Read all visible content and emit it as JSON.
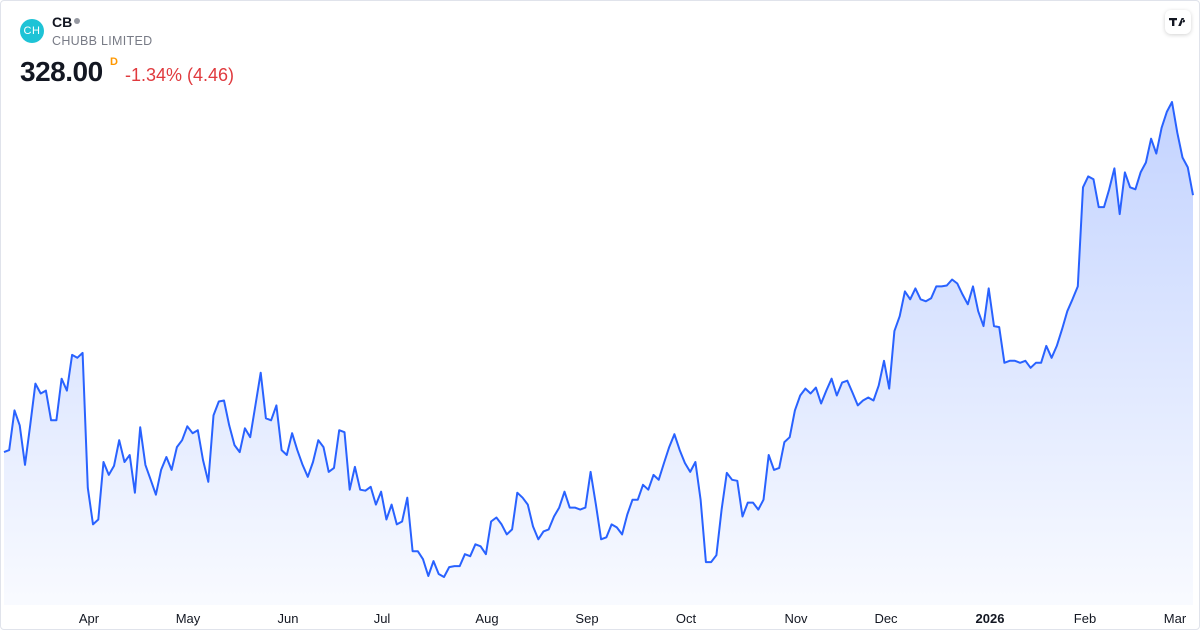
{
  "chart_data": {
    "type": "area",
    "logo_text": "CH",
    "symbol": "CB",
    "company": "CHUBB LIMITED",
    "price": "328.00",
    "session_flag": "D",
    "change": "-1.34% (4.46)",
    "color": "#2962ff",
    "xtick_labels": [
      "Apr",
      "May",
      "Jun",
      "Jul",
      "Aug",
      "Sep",
      "Oct",
      "Nov",
      "Dec",
      "2026",
      "Feb",
      "Mar"
    ],
    "values": [
      276.2,
      276.6,
      284.6,
      281.6,
      273.6,
      281.6,
      290.0,
      288.0,
      288.6,
      282.6,
      282.6,
      291.0,
      288.6,
      295.8,
      295.2,
      296.2,
      269.0,
      261.6,
      262.6,
      274.2,
      271.6,
      273.4,
      278.6,
      274.2,
      275.6,
      268.0,
      281.2,
      273.6,
      270.6,
      267.6,
      272.6,
      275.2,
      272.6,
      277.2,
      278.6,
      281.4,
      280.0,
      280.6,
      274.6,
      270.2,
      283.6,
      286.4,
      286.6,
      281.6,
      277.6,
      276.2,
      281.0,
      279.2,
      285.6,
      292.2,
      283.0,
      282.6,
      285.6,
      276.6,
      275.6,
      280.0,
      276.6,
      273.6,
      271.2,
      274.2,
      278.6,
      277.2,
      272.2,
      273.0,
      280.6,
      280.2,
      268.6,
      273.2,
      268.6,
      268.4,
      269.2,
      265.6,
      268.2,
      262.6,
      265.6,
      261.6,
      262.2,
      267.0,
      256.2,
      256.2,
      254.6,
      251.2,
      254.2,
      251.6,
      251.0,
      253.0,
      253.2,
      253.2,
      255.6,
      255.2,
      257.6,
      257.2,
      255.6,
      262.2,
      263.0,
      261.6,
      259.6,
      260.6,
      268.0,
      267.0,
      265.6,
      261.2,
      258.6,
      260.2,
      260.6,
      263.2,
      265.0,
      268.2,
      265.0,
      265.0,
      264.6,
      265.0,
      272.2,
      265.6,
      258.6,
      259.0,
      261.6,
      261.0,
      259.6,
      263.6,
      266.6,
      266.6,
      269.6,
      268.6,
      271.6,
      270.6,
      274.0,
      277.2,
      279.8,
      276.6,
      274.0,
      272.2,
      274.2,
      266.6,
      254.0,
      254.0,
      255.4,
      264.6,
      272.0,
      270.6,
      270.4,
      263.2,
      266.0,
      266.0,
      264.6,
      266.6,
      275.6,
      272.6,
      273.0,
      278.2,
      279.2,
      284.6,
      287.6,
      289.0,
      288.0,
      289.2,
      286.0,
      288.6,
      291.0,
      287.6,
      290.2,
      290.6,
      288.2,
      285.6,
      286.6,
      287.2,
      286.6,
      289.6,
      294.6,
      289.0,
      300.6,
      303.6,
      308.6,
      307.0,
      309.2,
      307.0,
      306.6,
      307.2,
      309.6,
      309.6,
      309.8,
      311.0,
      310.2,
      308.0,
      306.0,
      309.6,
      304.6,
      301.6,
      309.2,
      301.6,
      301.4,
      294.2,
      294.6,
      294.6,
      294.2,
      294.6,
      293.2,
      294.2,
      294.2,
      297.6,
      295.2,
      297.6,
      301.0,
      304.6,
      307.0,
      309.6,
      329.6,
      331.8,
      331.2,
      325.6,
      325.6,
      329.2,
      333.4,
      324.2,
      332.6,
      329.6,
      329.2,
      332.6,
      334.6,
      339.4,
      336.4,
      341.6,
      344.8,
      346.8,
      340.6,
      335.6,
      333.6,
      328.0
    ],
    "grid": false
  }
}
